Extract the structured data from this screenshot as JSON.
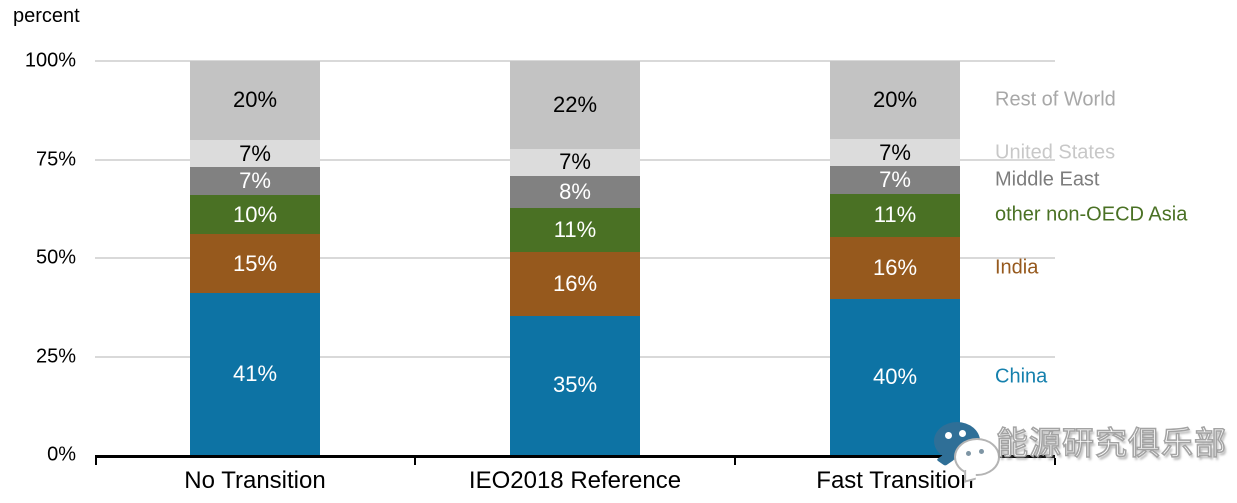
{
  "chart_data": {
    "type": "bar",
    "stacked": true,
    "ylabel": "percent",
    "categories": [
      "No Transition",
      "IEO2018 Reference",
      "Fast Transition"
    ],
    "series": [
      {
        "name": "China",
        "values": [
          41,
          35,
          40
        ],
        "color": "#0d73a4",
        "label_color": "#ffffff",
        "legend_color": "#1580ad"
      },
      {
        "name": "India",
        "values": [
          15,
          16,
          16
        ],
        "color": "#96591d",
        "label_color": "#ffffff",
        "legend_color": "#96591d"
      },
      {
        "name": "other non-OECD Asia",
        "values": [
          10,
          11,
          11
        ],
        "color": "#4a7124",
        "label_color": "#ffffff",
        "legend_color": "#4a7124"
      },
      {
        "name": "Middle East",
        "values": [
          7,
          8,
          7
        ],
        "color": "#818181",
        "label_color": "#ffffff",
        "legend_color": "#7d7d7d"
      },
      {
        "name": "United States",
        "values": [
          7,
          7,
          7
        ],
        "color": "#dcdcdc",
        "label_color": "#000000",
        "legend_color": "#c8c8c8"
      },
      {
        "name": "Rest of World",
        "values": [
          20,
          22,
          20
        ],
        "color": "#c3c3c3",
        "label_color": "#000000",
        "legend_color": "#a8a8a8"
      }
    ],
    "y_ticks": [
      "100%",
      "75%",
      "50%",
      "25%",
      "0%"
    ],
    "ylim": [
      0,
      100
    ],
    "grid": true,
    "grid_color": "#d9d9d9",
    "axis_color": "#000000",
    "legend_position": "right"
  },
  "watermark": {
    "text": "能源研究俱乐部",
    "icon": "wechat-logo"
  }
}
